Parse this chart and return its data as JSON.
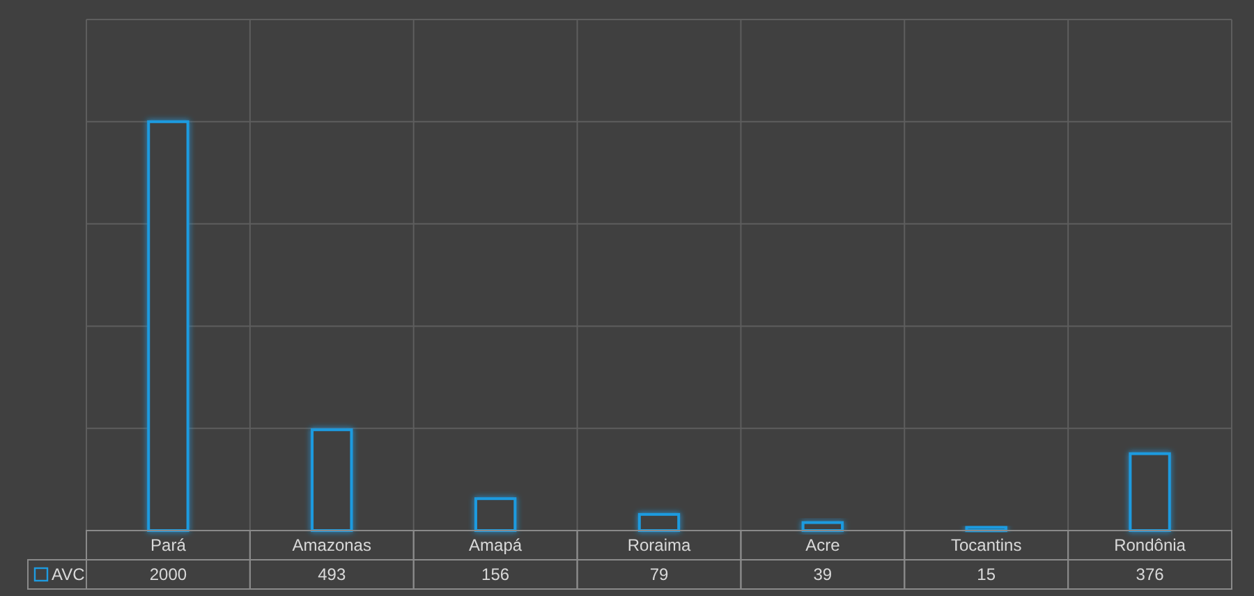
{
  "chart_data": {
    "type": "bar",
    "categories": [
      "Pará",
      "Amazonas",
      "Amapá",
      "Roraima",
      "Acre",
      "Tocantins",
      "Rondônia"
    ],
    "series": [
      {
        "name": "AVC",
        "color": "#1e9be0",
        "values": [
          2000,
          493,
          156,
          79,
          39,
          15,
          376
        ]
      }
    ],
    "ylim": [
      0,
      2500
    ],
    "grid": true,
    "data_labels": true,
    "legend": "bottom left",
    "tick_labels": "x"
  }
}
